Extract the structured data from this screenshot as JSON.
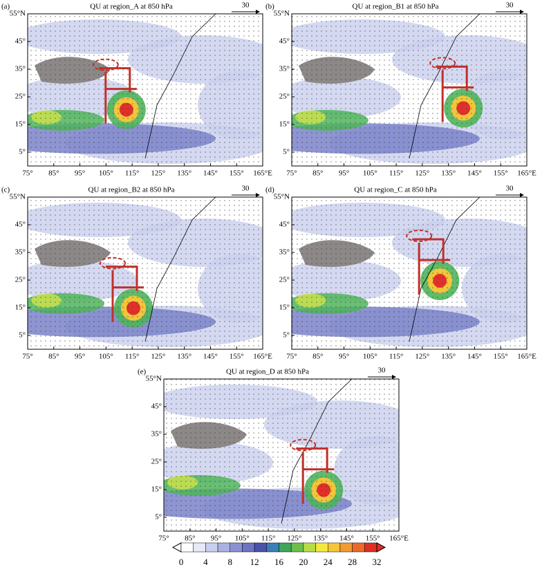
{
  "panels": [
    {
      "label": "(a)",
      "title": "QU at region_A at 850 hPa",
      "ref_label": "30"
    },
    {
      "label": "(b)",
      "title": "QU at region_B1 at 850 hPa",
      "ref_label": "30"
    },
    {
      "label": "(c)",
      "title": "QU at region_B2 at 850 hPa",
      "ref_label": "30"
    },
    {
      "label": "(d)",
      "title": "QU at region_C at 850 hPa",
      "ref_label": "30"
    },
    {
      "label": "(e)",
      "title": "QU at region_D at 850 hPa",
      "ref_label": "30"
    }
  ],
  "x_ticks": [
    "75°",
    "85°",
    "95°",
    "105°",
    "115°",
    "125°",
    "135°",
    "145°",
    "155°",
    "165°E"
  ],
  "y_ticks": [
    "5°",
    "15°",
    "25°",
    "35°",
    "45°",
    "55°N"
  ],
  "colorbar": {
    "ticks": [
      0,
      4,
      8,
      12,
      16,
      20,
      24,
      28,
      32
    ]
  }
}
